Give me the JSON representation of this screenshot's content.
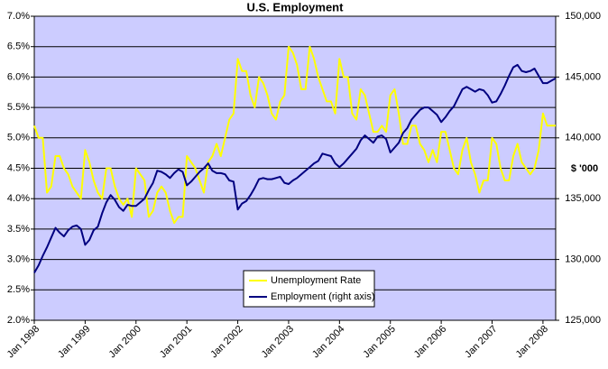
{
  "chart_data": {
    "type": "line",
    "title": "U.S. Employment",
    "y2_label": "$ '000",
    "categories": [
      "Jan 1998",
      null,
      null,
      null,
      null,
      null,
      null,
      null,
      null,
      null,
      null,
      null,
      "Jan 1999",
      null,
      null,
      null,
      null,
      null,
      null,
      null,
      null,
      null,
      null,
      null,
      "Jan 2000",
      null,
      null,
      null,
      null,
      null,
      null,
      null,
      null,
      null,
      null,
      null,
      "Jan 2001",
      null,
      null,
      null,
      null,
      null,
      null,
      null,
      null,
      null,
      null,
      null,
      "Jan 2002",
      null,
      null,
      null,
      null,
      null,
      null,
      null,
      null,
      null,
      null,
      null,
      "Jan 2003",
      null,
      null,
      null,
      null,
      null,
      null,
      null,
      null,
      null,
      null,
      null,
      "Jan 2004",
      null,
      null,
      null,
      null,
      null,
      null,
      null,
      null,
      null,
      null,
      null,
      "Jan 2005",
      null,
      null,
      null,
      null,
      null,
      null,
      null,
      null,
      null,
      null,
      null,
      "Jan 2006",
      null,
      null,
      null,
      null,
      null,
      null,
      null,
      null,
      null,
      null,
      null,
      "Jan 2007",
      null,
      null,
      null,
      null,
      null,
      null,
      null,
      null,
      null,
      null,
      null,
      "Jan 2008",
      null,
      null,
      null
    ],
    "series": [
      {
        "name": "Unemployment Rate",
        "color": "#ffff00",
        "values": [
          5.2,
          5.0,
          5.0,
          4.1,
          4.2,
          4.7,
          4.7,
          4.5,
          4.4,
          4.2,
          4.1,
          4.0,
          4.8,
          4.6,
          4.3,
          4.1,
          4.0,
          4.5,
          4.5,
          4.2,
          4.0,
          3.9,
          4.0,
          3.7,
          4.5,
          4.4,
          4.3,
          3.7,
          3.8,
          4.1,
          4.2,
          4.1,
          3.8,
          3.6,
          3.7,
          3.7,
          4.7,
          4.6,
          4.5,
          4.3,
          4.1,
          4.6,
          4.7,
          4.9,
          4.7,
          5.0,
          5.3,
          5.4,
          6.3,
          6.1,
          6.1,
          5.7,
          5.5,
          6.0,
          5.9,
          5.7,
          5.4,
          5.3,
          5.6,
          5.7,
          6.5,
          6.4,
          6.2,
          5.8,
          5.8,
          6.5,
          6.3,
          6.0,
          5.8,
          5.6,
          5.6,
          5.4,
          6.3,
          6.0,
          6.0,
          5.4,
          5.3,
          5.8,
          5.7,
          5.4,
          5.1,
          5.1,
          5.2,
          5.1,
          5.7,
          5.8,
          5.4,
          4.9,
          4.9,
          5.2,
          5.2,
          4.9,
          4.8,
          4.6,
          4.8,
          4.6,
          5.1,
          5.1,
          4.8,
          4.5,
          4.4,
          4.8,
          5.0,
          4.6,
          4.4,
          4.1,
          4.3,
          4.3,
          5.0,
          4.9,
          4.5,
          4.3,
          4.3,
          4.7,
          4.9,
          4.6,
          4.5,
          4.4,
          4.5,
          4.8,
          5.4,
          5.2,
          5.2,
          5.2
        ]
      },
      {
        "name": "Employment (right axis)",
        "color": "#000080",
        "axis": "y2",
        "values": [
          128900,
          129500,
          130300,
          131000,
          131800,
          132600,
          132200,
          131900,
          132400,
          132700,
          132800,
          132500,
          131200,
          131600,
          132400,
          132700,
          133800,
          134700,
          135300,
          134900,
          134300,
          134000,
          134500,
          134400,
          134400,
          134700,
          135000,
          135700,
          136300,
          137300,
          137200,
          137000,
          136700,
          137100,
          137400,
          137200,
          136100,
          136400,
          136800,
          137200,
          137500,
          137900,
          137300,
          137100,
          137100,
          137000,
          136500,
          136400,
          134100,
          134600,
          134800,
          135300,
          135900,
          136600,
          136700,
          136600,
          136600,
          136700,
          136800,
          136300,
          136200,
          136500,
          136700,
          137000,
          137300,
          137600,
          137900,
          138100,
          138700,
          138600,
          138500,
          137900,
          137600,
          137900,
          138300,
          138700,
          139100,
          139800,
          140200,
          139900,
          139600,
          140100,
          140200,
          139900,
          138800,
          139200,
          139600,
          140400,
          140800,
          141500,
          141900,
          142300,
          142500,
          142500,
          142200,
          141900,
          141300,
          141700,
          142200,
          142600,
          143300,
          144000,
          144200,
          144000,
          143800,
          144000,
          143900,
          143500,
          142900,
          143000,
          143600,
          144300,
          145100,
          145800,
          146000,
          145500,
          145400,
          145500,
          145700,
          145100,
          144500,
          144500,
          144700,
          144900
        ]
      }
    ],
    "ylim": [
      2,
      7
    ],
    "yticks": [
      {
        "value": 2,
        "label": "2.0%"
      },
      {
        "value": 2.5,
        "label": "2.5%"
      },
      {
        "value": 3,
        "label": "3.0%"
      },
      {
        "value": 3.5,
        "label": "3.5%"
      },
      {
        "value": 4,
        "label": "4.0%"
      },
      {
        "value": 4.5,
        "label": "4.5%"
      },
      {
        "value": 5,
        "label": "5.0%"
      },
      {
        "value": 5.5,
        "label": "5.5%"
      },
      {
        "value": 6,
        "label": "6.0%"
      },
      {
        "value": 6.5,
        "label": "6.5%"
      },
      {
        "value": 7,
        "label": "7.0%"
      }
    ],
    "y2lim": [
      125000,
      150000
    ],
    "y2ticks": [
      {
        "value": 125000,
        "label": "125,000"
      },
      {
        "value": 130000,
        "label": "130,000"
      },
      {
        "value": 135000,
        "label": "135,000"
      },
      {
        "value": 140000,
        "label": "140,000"
      },
      {
        "value": 145000,
        "label": "145,000"
      },
      {
        "value": 150000,
        "label": "150,000"
      }
    ],
    "grid": true,
    "legend": "lower center",
    "plot_background": "#ccccff"
  }
}
